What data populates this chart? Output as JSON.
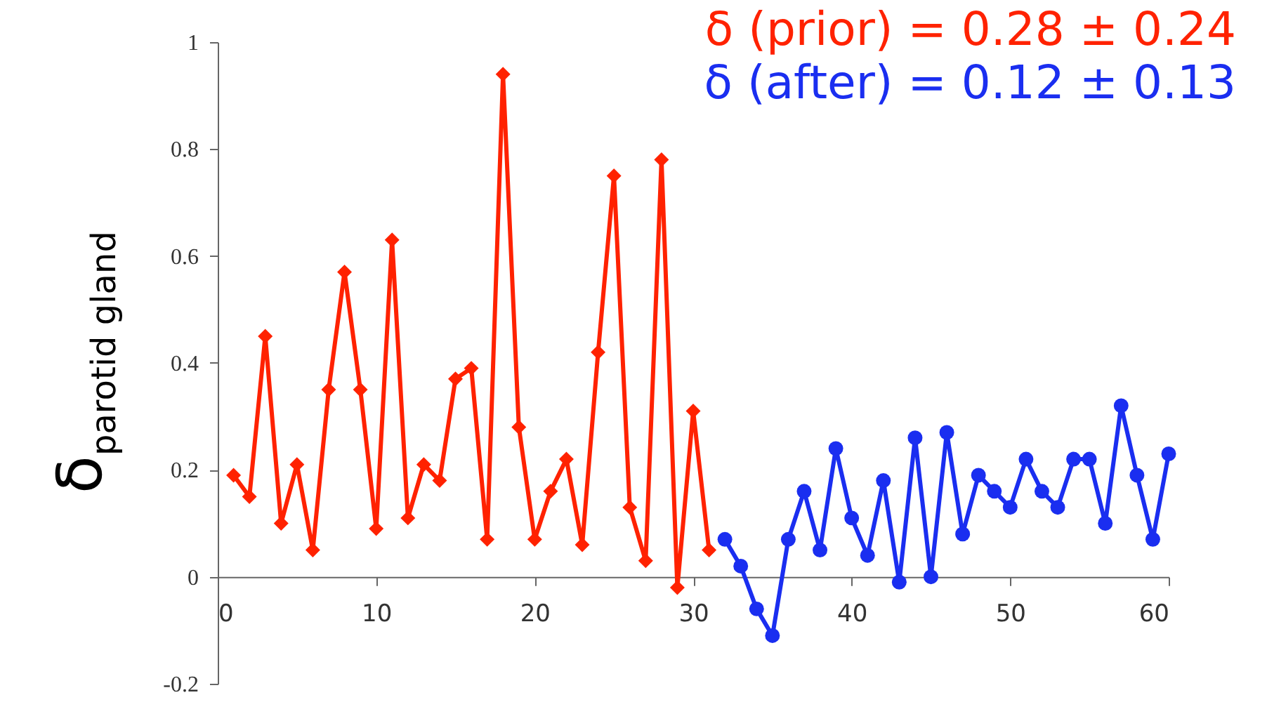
{
  "chart_data": {
    "type": "line",
    "ylabel": "δ$_{parotid gland}$",
    "annotations": [
      "δ (prior) = 0.28 ± 0.24",
      "δ (after) = 0.12 ± 0.13"
    ],
    "xlim": [
      0,
      60
    ],
    "xticks": [
      0,
      10,
      20,
      30,
      40,
      50,
      60
    ],
    "ylim": [
      -0.2,
      1
    ],
    "yticks": [
      -0.2,
      0,
      0.2,
      0.4,
      0.6,
      0.8,
      1
    ],
    "grid": false,
    "series": [
      {
        "color": "#ff2200",
        "marker": "diamond",
        "x": [
          1,
          2,
          3,
          4,
          5,
          6,
          7,
          8,
          9,
          10,
          11,
          12,
          13,
          14,
          15,
          16,
          17,
          18,
          19,
          20,
          21,
          22,
          23,
          24,
          25,
          26,
          27,
          28,
          29,
          30,
          31
        ],
        "values": [
          0.19,
          0.15,
          0.45,
          0.1,
          0.21,
          0.05,
          0.35,
          0.57,
          0.35,
          0.09,
          0.63,
          0.11,
          0.21,
          0.18,
          0.37,
          0.39,
          0.07,
          0.94,
          0.28,
          0.07,
          0.16,
          0.22,
          0.06,
          0.42,
          0.75,
          0.13,
          0.03,
          0.78,
          -0.02,
          0.31,
          0.05
        ]
      },
      {
        "color": "#1a2ef0",
        "marker": "circle",
        "x": [
          32,
          33,
          34,
          35,
          36,
          37,
          38,
          39,
          40,
          41,
          42,
          43,
          44,
          45,
          46,
          47,
          48,
          49,
          50,
          51,
          52,
          53,
          54,
          55,
          56,
          57,
          58,
          59,
          60
        ],
        "values": [
          0.07,
          0.02,
          -0.06,
          -0.11,
          0.07,
          0.16,
          0.05,
          0.24,
          0.11,
          0.04,
          0.18,
          -0.01,
          0.26,
          0.0,
          0.27,
          0.08,
          0.19,
          0.16,
          0.13,
          0.22,
          0.16,
          0.13,
          0.22,
          0.22,
          0.1,
          0.32,
          0.19,
          0.07,
          0.23
        ]
      }
    ]
  }
}
